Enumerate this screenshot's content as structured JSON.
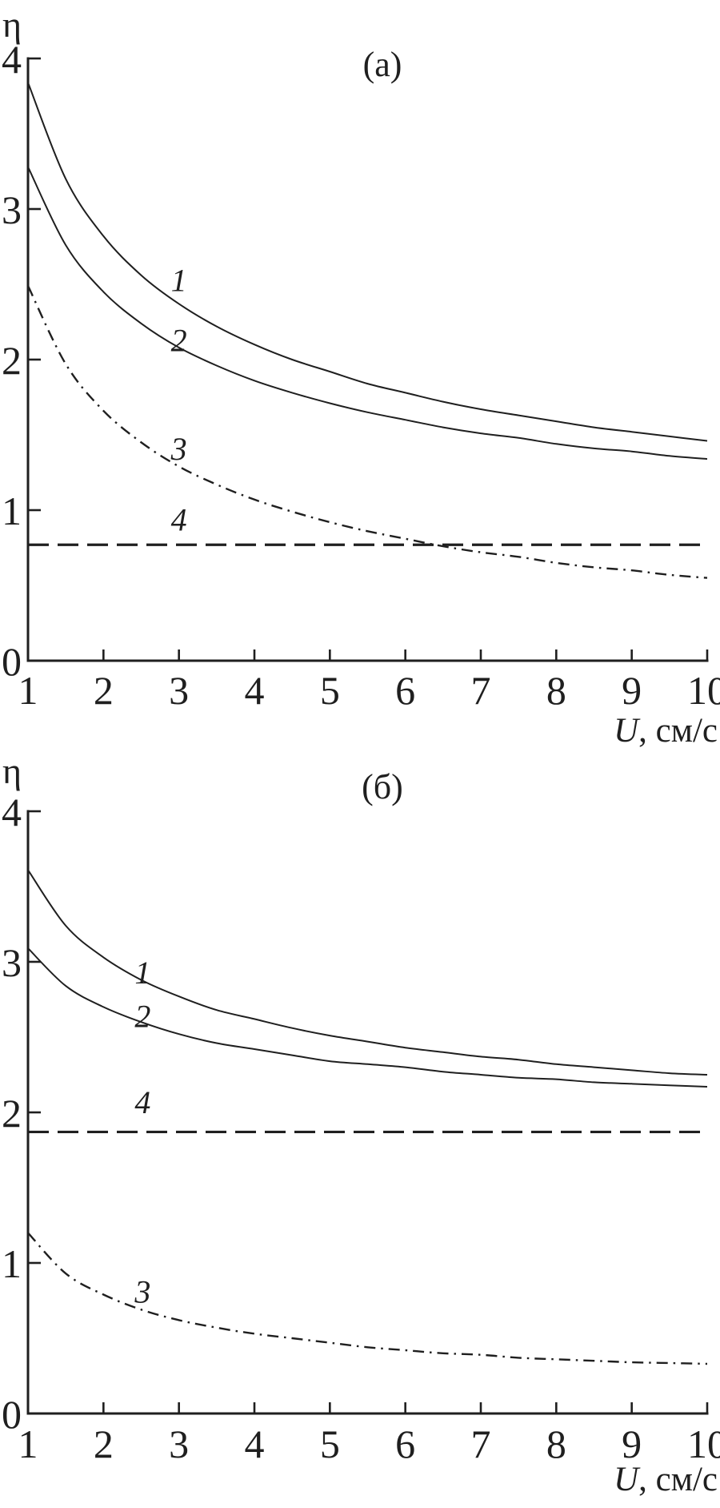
{
  "figure": {
    "background": "#ffffff",
    "ink": "#1f1f1f"
  },
  "chart_data": [
    {
      "type": "line",
      "panel": "a",
      "title": "(а)",
      "ylabel": "η",
      "xlabel_italic": "U",
      "xlabel_units": ", см/с",
      "xlim": [
        1,
        10
      ],
      "ylim": [
        0,
        4
      ],
      "x_ticks": [
        1,
        2,
        3,
        4,
        5,
        6,
        7,
        8,
        9,
        10
      ],
      "y_ticks": [
        0,
        1,
        2,
        3,
        4
      ],
      "grid": false,
      "legend": "none",
      "x": [
        1,
        1.5,
        2,
        2.5,
        3,
        3.5,
        4,
        4.5,
        5,
        5.5,
        6,
        6.5,
        7,
        7.5,
        8,
        8.5,
        9,
        9.5,
        10
      ],
      "series": [
        {
          "name": "1",
          "style": "solid",
          "values": [
            3.84,
            3.2,
            2.82,
            2.56,
            2.37,
            2.22,
            2.1,
            2.0,
            1.92,
            1.84,
            1.78,
            1.72,
            1.67,
            1.63,
            1.59,
            1.55,
            1.52,
            1.49,
            1.46
          ]
        },
        {
          "name": "2",
          "style": "solid",
          "values": [
            3.28,
            2.76,
            2.45,
            2.24,
            2.08,
            1.96,
            1.86,
            1.78,
            1.71,
            1.65,
            1.6,
            1.55,
            1.51,
            1.48,
            1.44,
            1.41,
            1.39,
            1.36,
            1.34
          ]
        },
        {
          "name": "3",
          "style": "dashdot",
          "values": [
            2.49,
            1.97,
            1.66,
            1.45,
            1.29,
            1.17,
            1.07,
            0.99,
            0.92,
            0.86,
            0.81,
            0.76,
            0.72,
            0.69,
            0.65,
            0.62,
            0.6,
            0.57,
            0.55
          ]
        },
        {
          "name": "4",
          "style": "dashed",
          "constant": 0.77
        }
      ],
      "series_labels": [
        {
          "text": "1",
          "u": 3.0,
          "eta": 2.53
        },
        {
          "text": "2",
          "u": 3.0,
          "eta": 2.13
        },
        {
          "text": "3",
          "u": 3.0,
          "eta": 1.41
        },
        {
          "text": "4",
          "u": 3.0,
          "eta": 0.94
        }
      ]
    },
    {
      "type": "line",
      "panel": "b",
      "title": "(б)",
      "ylabel": "η",
      "xlabel_italic": "U",
      "xlabel_units": ", см/с",
      "xlim": [
        1,
        10
      ],
      "ylim": [
        0,
        4
      ],
      "x_ticks": [
        1,
        2,
        3,
        4,
        5,
        6,
        7,
        8,
        9,
        10
      ],
      "y_ticks": [
        0,
        1,
        2,
        3,
        4
      ],
      "grid": false,
      "legend": "none",
      "x": [
        1,
        1.5,
        2,
        2.5,
        3,
        3.5,
        4,
        4.5,
        5,
        5.5,
        6,
        6.5,
        7,
        7.5,
        8,
        8.5,
        9,
        9.5,
        10
      ],
      "series": [
        {
          "name": "1",
          "style": "solid",
          "values": [
            3.61,
            3.24,
            3.03,
            2.88,
            2.77,
            2.68,
            2.62,
            2.56,
            2.51,
            2.47,
            2.43,
            2.4,
            2.37,
            2.35,
            2.32,
            2.3,
            2.28,
            2.26,
            2.25
          ]
        },
        {
          "name": "2",
          "style": "solid",
          "values": [
            3.09,
            2.84,
            2.7,
            2.6,
            2.52,
            2.46,
            2.42,
            2.38,
            2.34,
            2.32,
            2.3,
            2.27,
            2.25,
            2.23,
            2.22,
            2.2,
            2.19,
            2.18,
            2.17
          ]
        },
        {
          "name": "3",
          "style": "dashdot",
          "values": [
            1.2,
            0.93,
            0.79,
            0.69,
            0.62,
            0.57,
            0.53,
            0.5,
            0.47,
            0.44,
            0.42,
            0.4,
            0.39,
            0.37,
            0.36,
            0.35,
            0.34,
            0.335,
            0.33
          ]
        },
        {
          "name": "4",
          "style": "dashed",
          "constant": 1.87
        }
      ],
      "series_labels": [
        {
          "text": "1",
          "u": 2.52,
          "eta": 2.93
        },
        {
          "text": "2",
          "u": 2.52,
          "eta": 2.64
        },
        {
          "text": "3",
          "u": 2.52,
          "eta": 0.81
        },
        {
          "text": "4",
          "u": 2.52,
          "eta": 2.07
        }
      ]
    }
  ]
}
